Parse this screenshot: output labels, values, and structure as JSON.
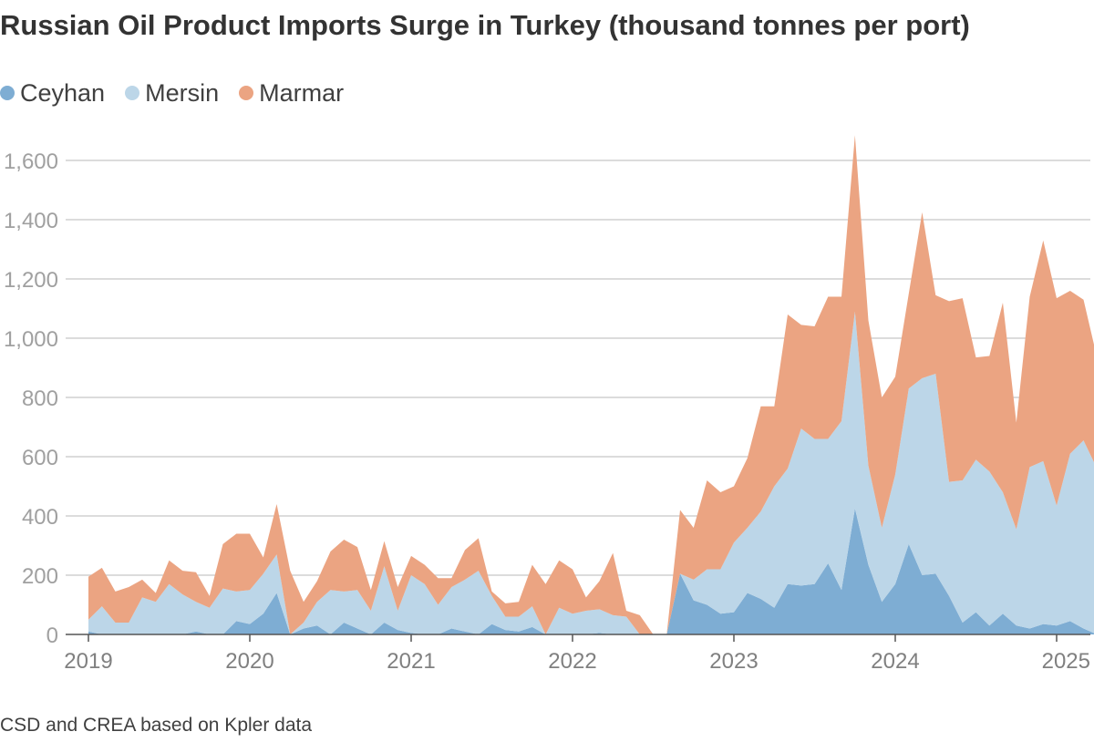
{
  "title": "Russian Oil Product Imports Surge in Turkey (thousand tonnes per port)",
  "source": "CSD and CREA based on Kpler data",
  "colors": {
    "ceyhan": "#7eadd3",
    "mersin": "#bcd6e8",
    "marmar": "#eba482",
    "grid": "#c8c8c8",
    "axis": "#555555",
    "tick_text": "#a0a0a0",
    "year_text": "#808080"
  },
  "legend": [
    {
      "key": "ceyhan",
      "label": "Ceyhan"
    },
    {
      "key": "mersin",
      "label": "Mersin"
    },
    {
      "key": "marmar",
      "label": "Marmar"
    }
  ],
  "chart_data": {
    "type": "area",
    "stacked": true,
    "title": "Russian Oil Product Imports Surge in Turkey (thousand tonnes per port)",
    "xlabel": "",
    "ylabel": "thousand tonnes",
    "ylim": [
      0,
      1700
    ],
    "yticks": [
      0,
      200,
      400,
      600,
      800,
      1000,
      1200,
      1400,
      1600
    ],
    "ytick_labels": [
      "0",
      "200",
      "400",
      "600",
      "800",
      "1,000",
      "1,200",
      "1,400",
      "1,600"
    ],
    "xticks": [
      2019,
      2020,
      2021,
      2022,
      2023,
      2024,
      2025
    ],
    "xtick_labels": [
      "2019",
      "2020",
      "2021",
      "2022",
      "2023",
      "2024",
      "2025"
    ],
    "x_start": 2019.0,
    "x_step_months": 1,
    "grid": true,
    "legend_position": "top-left",
    "series": [
      {
        "name": "Ceyhan",
        "key": "ceyhan",
        "values": [
          10,
          0,
          0,
          0,
          0,
          0,
          0,
          0,
          10,
          0,
          0,
          45,
          35,
          70,
          140,
          0,
          20,
          30,
          0,
          40,
          20,
          0,
          40,
          15,
          5,
          0,
          0,
          20,
          10,
          0,
          35,
          15,
          10,
          25,
          0,
          0,
          0,
          0,
          5,
          0,
          0,
          0,
          0,
          0,
          205,
          115,
          100,
          70,
          75,
          140,
          120,
          90,
          170,
          165,
          170,
          240,
          150,
          425,
          235,
          110,
          170,
          305,
          200,
          205,
          130,
          40,
          75,
          30,
          70,
          30,
          20,
          35,
          30,
          45,
          20,
          0
        ]
      },
      {
        "name": "Mersin",
        "key": "mersin",
        "values": [
          40,
          95,
          40,
          40,
          125,
          110,
          170,
          135,
          100,
          90,
          155,
          100,
          115,
          135,
          130,
          0,
          20,
          80,
          150,
          105,
          130,
          80,
          190,
          65,
          195,
          170,
          100,
          140,
          175,
          215,
          95,
          45,
          50,
          70,
          0,
          90,
          70,
          80,
          80,
          65,
          60,
          0,
          0,
          0,
          0,
          70,
          120,
          150,
          235,
          220,
          295,
          410,
          390,
          530,
          490,
          420,
          570,
          665,
          335,
          250,
          370,
          525,
          665,
          675,
          385,
          480,
          515,
          520,
          410,
          325,
          545,
          550,
          405,
          565,
          635,
          560
        ]
      },
      {
        "name": "Marmar",
        "key": "marmar",
        "values": [
          145,
          130,
          105,
          120,
          60,
          30,
          80,
          80,
          100,
          40,
          150,
          195,
          190,
          55,
          170,
          215,
          70,
          70,
          130,
          175,
          145,
          70,
          85,
          80,
          65,
          65,
          90,
          30,
          100,
          110,
          15,
          45,
          50,
          140,
          170,
          160,
          150,
          45,
          95,
          210,
          20,
          65,
          0,
          0,
          215,
          175,
          300,
          260,
          190,
          235,
          355,
          270,
          520,
          350,
          380,
          480,
          420,
          595,
          490,
          440,
          330,
          320,
          560,
          265,
          610,
          615,
          345,
          390,
          640,
          360,
          575,
          745,
          700,
          550,
          475,
          375
        ]
      }
    ]
  }
}
